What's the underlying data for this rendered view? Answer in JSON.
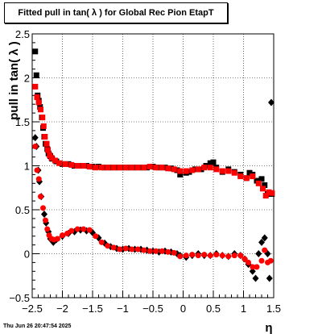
{
  "title": "Fitted pull in tan( λ ) for Global Rec Pion EtapT",
  "timestamp": "Thu Jun 26 20:47:54 2025",
  "chart_data": {
    "type": "scatter",
    "xlabel": "η",
    "ylabel": "pull in tan( λ )",
    "xlim": [
      -2.5,
      1.5
    ],
    "ylim": [
      -0.5,
      2.5
    ],
    "xticks": [
      "−2.5",
      "−2",
      "−1.5",
      "−1",
      "−0.5",
      "0",
      "0.5",
      "1",
      "1.5"
    ],
    "yticks": [
      "−0.5",
      "0",
      "0.5",
      "1",
      "1.5",
      "2",
      "2.5"
    ],
    "grid": true,
    "series": [
      {
        "color": "#000000",
        "points": [
          [
            -2.45,
            2.3
          ],
          [
            -2.43,
            2.03
          ],
          [
            -2.41,
            1.8
          ],
          [
            -2.39,
            1.74
          ],
          [
            -2.37,
            1.67
          ],
          [
            -2.34,
            1.55
          ],
          [
            -2.32,
            1.43
          ],
          [
            -2.3,
            1.33
          ],
          [
            -2.28,
            1.25
          ],
          [
            -2.25,
            1.19
          ],
          [
            -2.23,
            1.14
          ],
          [
            -2.2,
            1.11
          ],
          [
            -2.17,
            1.08
          ],
          [
            -2.1,
            1.05
          ],
          [
            -2.0,
            1.02
          ],
          [
            -1.9,
            1.02
          ],
          [
            -1.8,
            1.0
          ],
          [
            -1.7,
            1.0
          ],
          [
            -1.6,
            1.0
          ],
          [
            -1.5,
            0.99
          ],
          [
            -1.4,
            0.99
          ],
          [
            -1.3,
            0.98
          ],
          [
            -1.2,
            0.98
          ],
          [
            -1.1,
            0.98
          ],
          [
            -1.0,
            0.98
          ],
          [
            -0.9,
            0.98
          ],
          [
            -0.8,
            0.98
          ],
          [
            -0.7,
            0.98
          ],
          [
            -0.6,
            0.98
          ],
          [
            -0.5,
            0.99
          ],
          [
            -0.4,
            0.98
          ],
          [
            -0.3,
            0.98
          ],
          [
            -0.2,
            0.97
          ],
          [
            -0.1,
            0.95
          ],
          [
            -0.05,
            0.9
          ],
          [
            0.05,
            0.92
          ],
          [
            0.1,
            0.93
          ],
          [
            0.2,
            0.96
          ],
          [
            0.3,
            0.96
          ],
          [
            0.38,
            1.0
          ],
          [
            0.45,
            1.03
          ],
          [
            0.5,
            1.04
          ],
          [
            0.55,
            0.98
          ],
          [
            0.65,
            0.93
          ],
          [
            0.75,
            0.96
          ],
          [
            0.85,
            0.93
          ],
          [
            0.95,
            0.9
          ],
          [
            1.05,
            0.86
          ],
          [
            1.1,
            0.92
          ],
          [
            1.15,
            0.9
          ],
          [
            1.22,
            0.83
          ],
          [
            1.3,
            0.85
          ],
          [
            1.35,
            0.78
          ],
          [
            1.4,
            0.68
          ],
          [
            1.43,
            0.68
          ],
          [
            1.47,
            0.68
          ]
        ]
      },
      {
        "color": "#000000",
        "points": [
          [
            -2.45,
            1.32
          ],
          [
            -2.43,
            1.22
          ],
          [
            -2.4,
            0.95
          ],
          [
            -2.38,
            0.82
          ],
          [
            -2.35,
            0.65
          ],
          [
            -2.3,
            0.45
          ],
          [
            -2.27,
            0.35
          ],
          [
            -2.23,
            0.25
          ],
          [
            -2.2,
            0.17
          ],
          [
            -2.15,
            0.13
          ],
          [
            -2.1,
            0.16
          ],
          [
            -2.0,
            0.2
          ],
          [
            -1.9,
            0.23
          ],
          [
            -1.8,
            0.25
          ],
          [
            -1.7,
            0.27
          ],
          [
            -1.6,
            0.26
          ],
          [
            -1.5,
            0.24
          ],
          [
            -1.4,
            0.18
          ],
          [
            -1.3,
            0.12
          ],
          [
            -1.2,
            0.08
          ],
          [
            -1.1,
            0.06
          ],
          [
            -1.0,
            0.05
          ],
          [
            -0.9,
            0.06
          ],
          [
            -0.8,
            0.05
          ],
          [
            -0.7,
            0.05
          ],
          [
            -0.6,
            0.04
          ],
          [
            -0.5,
            0.03
          ],
          [
            -0.4,
            0.02
          ],
          [
            -0.3,
            0.03
          ],
          [
            -0.2,
            0.02
          ],
          [
            -0.1,
            0.0
          ],
          [
            -0.05,
            -0.02
          ],
          [
            0.05,
            -0.04
          ],
          [
            0.15,
            -0.02
          ],
          [
            0.25,
            0.0
          ],
          [
            0.35,
            -0.02
          ],
          [
            0.45,
            -0.02
          ],
          [
            0.55,
            0.0
          ],
          [
            0.65,
            -0.02
          ],
          [
            0.75,
            -0.03
          ],
          [
            0.85,
            0.0
          ],
          [
            0.95,
            -0.02
          ],
          [
            1.02,
            -0.06
          ],
          [
            1.08,
            -0.12
          ],
          [
            1.15,
            -0.2
          ],
          [
            1.2,
            -0.28
          ],
          [
            1.25,
            0.0
          ],
          [
            1.3,
            0.13
          ],
          [
            1.35,
            0.18
          ],
          [
            1.4,
            0.0
          ],
          [
            1.43,
            -0.28
          ],
          [
            1.46,
            1.72
          ]
        ]
      },
      {
        "color": "#ff0000",
        "points": [
          [
            -2.45,
            1.9
          ],
          [
            -2.42,
            1.78
          ],
          [
            -2.39,
            1.72
          ],
          [
            -2.36,
            1.64
          ],
          [
            -2.33,
            1.55
          ],
          [
            -2.31,
            1.45
          ],
          [
            -2.29,
            1.33
          ],
          [
            -2.26,
            1.25
          ],
          [
            -2.24,
            1.18
          ],
          [
            -2.21,
            1.12
          ],
          [
            -2.18,
            1.09
          ],
          [
            -2.12,
            1.06
          ],
          [
            -2.05,
            1.03
          ],
          [
            -1.95,
            1.02
          ],
          [
            -1.85,
            1.01
          ],
          [
            -1.75,
            1.0
          ],
          [
            -1.65,
            1.0
          ],
          [
            -1.55,
            0.99
          ],
          [
            -1.45,
            0.98
          ],
          [
            -1.35,
            0.98
          ],
          [
            -1.25,
            0.98
          ],
          [
            -1.15,
            0.98
          ],
          [
            -1.05,
            0.98
          ],
          [
            -0.95,
            0.98
          ],
          [
            -0.85,
            0.98
          ],
          [
            -0.75,
            0.98
          ],
          [
            -0.65,
            0.98
          ],
          [
            -0.55,
            0.99
          ],
          [
            -0.45,
            0.98
          ],
          [
            -0.35,
            0.98
          ],
          [
            -0.25,
            0.97
          ],
          [
            -0.15,
            0.96
          ],
          [
            -0.05,
            0.94
          ],
          [
            0.05,
            0.94
          ],
          [
            0.15,
            0.95
          ],
          [
            0.25,
            0.96
          ],
          [
            0.35,
            0.98
          ],
          [
            0.45,
            0.98
          ],
          [
            0.55,
            0.96
          ],
          [
            0.65,
            0.94
          ],
          [
            0.75,
            0.94
          ],
          [
            0.85,
            0.92
          ],
          [
            0.95,
            0.88
          ],
          [
            1.05,
            0.86
          ],
          [
            1.15,
            0.88
          ],
          [
            1.25,
            0.8
          ],
          [
            1.32,
            0.74
          ],
          [
            1.37,
            0.66
          ],
          [
            1.42,
            0.7
          ],
          [
            1.47,
            0.69
          ]
        ]
      },
      {
        "color": "#ff0000",
        "points": [
          [
            -2.45,
            1.22
          ],
          [
            -2.42,
            0.95
          ],
          [
            -2.39,
            0.85
          ],
          [
            -2.36,
            0.65
          ],
          [
            -2.32,
            0.52
          ],
          [
            -2.28,
            0.38
          ],
          [
            -2.25,
            0.28
          ],
          [
            -2.22,
            0.21
          ],
          [
            -2.18,
            0.17
          ],
          [
            -2.14,
            0.16
          ],
          [
            -2.08,
            0.17
          ],
          [
            -2.0,
            0.21
          ],
          [
            -1.92,
            0.23
          ],
          [
            -1.85,
            0.26
          ],
          [
            -1.75,
            0.28
          ],
          [
            -1.65,
            0.28
          ],
          [
            -1.55,
            0.27
          ],
          [
            -1.45,
            0.2
          ],
          [
            -1.35,
            0.13
          ],
          [
            -1.25,
            0.09
          ],
          [
            -1.15,
            0.07
          ],
          [
            -1.05,
            0.05
          ],
          [
            -0.95,
            0.06
          ],
          [
            -0.85,
            0.05
          ],
          [
            -0.75,
            0.05
          ],
          [
            -0.65,
            0.04
          ],
          [
            -0.55,
            0.03
          ],
          [
            -0.45,
            0.03
          ],
          [
            -0.35,
            0.03
          ],
          [
            -0.25,
            0.02
          ],
          [
            -0.15,
            0.01
          ],
          [
            -0.05,
            -0.03
          ],
          [
            0.05,
            -0.02
          ],
          [
            0.15,
            -0.01
          ],
          [
            0.25,
            -0.02
          ],
          [
            0.35,
            -0.01
          ],
          [
            0.45,
            -0.02
          ],
          [
            0.55,
            -0.01
          ],
          [
            0.65,
            -0.02
          ],
          [
            0.75,
            -0.03
          ],
          [
            0.85,
            -0.02
          ],
          [
            0.95,
            -0.02
          ],
          [
            1.02,
            -0.06
          ],
          [
            1.08,
            -0.1
          ],
          [
            1.15,
            -0.15
          ],
          [
            1.22,
            -0.15
          ],
          [
            1.3,
            -0.08
          ],
          [
            1.35,
            0.04
          ],
          [
            1.4,
            -0.1
          ],
          [
            1.45,
            -0.08
          ]
        ]
      }
    ]
  }
}
